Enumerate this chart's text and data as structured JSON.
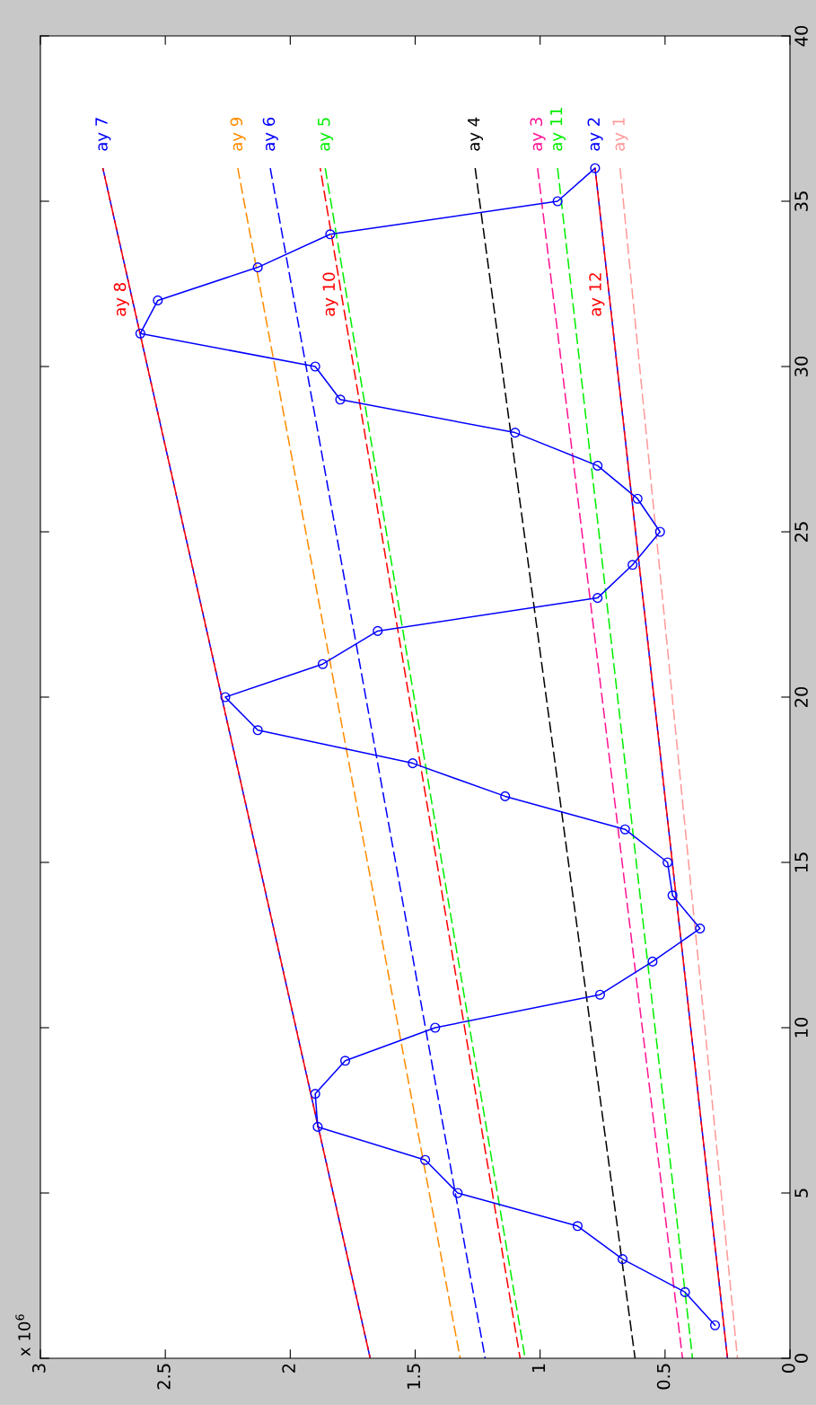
{
  "chart_data": {
    "type": "line",
    "series": [
      {
        "color": "#0000ff",
        "marker": "circle",
        "line_style": "solid",
        "x": [
          0.3,
          0.42,
          0.67,
          0.85,
          1.33,
          1.46,
          1.89,
          1.9,
          1.78,
          1.42,
          0.76,
          0.55,
          0.36,
          0.47,
          0.49,
          0.66,
          1.14,
          1.51,
          2.13,
          2.26,
          1.87,
          1.65,
          0.77,
          0.63,
          0.52,
          0.61,
          0.77,
          1.1,
          1.8,
          1.9,
          2.6,
          2.53,
          2.13,
          1.84,
          0.93,
          0.78
        ],
        "values": [
          1,
          2,
          3,
          4,
          5,
          6,
          7,
          8,
          9,
          10,
          11,
          12,
          13,
          14,
          15,
          16,
          17,
          18,
          19,
          20,
          21,
          22,
          23,
          24,
          25,
          26,
          27,
          28,
          29,
          30,
          31,
          32,
          33,
          34,
          35,
          36
        ]
      },
      {
        "name": "ay 1",
        "color": "#ff9999",
        "x": [
          0.21,
          0.68
        ],
        "values": [
          0,
          36
        ]
      },
      {
        "name": "ay 2",
        "color": "#0000ff",
        "x": [
          0.25,
          0.78
        ],
        "values": [
          0,
          36
        ]
      },
      {
        "name": "ay 3",
        "color": "#ff1493",
        "x": [
          0.43,
          1.01
        ],
        "values": [
          0,
          36
        ]
      },
      {
        "name": "ay 4",
        "color": "#000000",
        "x": [
          0.62,
          1.26
        ],
        "values": [
          0,
          36
        ]
      },
      {
        "name": "ay 5",
        "color": "#00ee00",
        "x": [
          1.06,
          1.86
        ],
        "values": [
          0,
          36
        ]
      },
      {
        "name": "ay 6",
        "color": "#0000ff",
        "x": [
          1.22,
          2.08
        ],
        "values": [
          0,
          36
        ]
      },
      {
        "name": "ay 7",
        "color": "#0000ff",
        "x": [
          1.68,
          2.75
        ],
        "values": [
          0,
          36
        ]
      },
      {
        "name": "ay 8",
        "color": "#ff0000",
        "x": [
          1.68,
          2.75
        ],
        "values": [
          0,
          36
        ]
      },
      {
        "name": "ay 9",
        "color": "#ff8c00",
        "x": [
          1.32,
          2.21
        ],
        "values": [
          0,
          36
        ]
      },
      {
        "name": "ay 10",
        "color": "#ff0000",
        "x": [
          1.08,
          1.88
        ],
        "values": [
          0,
          36
        ]
      },
      {
        "name": "ay 11",
        "color": "#00ee00",
        "x": [
          0.39,
          0.93
        ],
        "values": [
          0,
          36
        ]
      },
      {
        "name": "ay 12",
        "color": "#ff0000",
        "x": [
          0.25,
          0.78
        ],
        "values": [
          0,
          36
        ]
      }
    ],
    "line_style": "dashed",
    "marker": "none",
    "xlim": [
      3,
      0
    ],
    "xticks": [
      3,
      2.5,
      2,
      1.5,
      1,
      0.5,
      0
    ],
    "ylim": [
      0,
      40
    ],
    "yticks": [
      0,
      5,
      10,
      15,
      20,
      25,
      30,
      35,
      40
    ],
    "annotations": [
      "x 10$^{6}$"
    ],
    "grid": false,
    "legend": false
  }
}
